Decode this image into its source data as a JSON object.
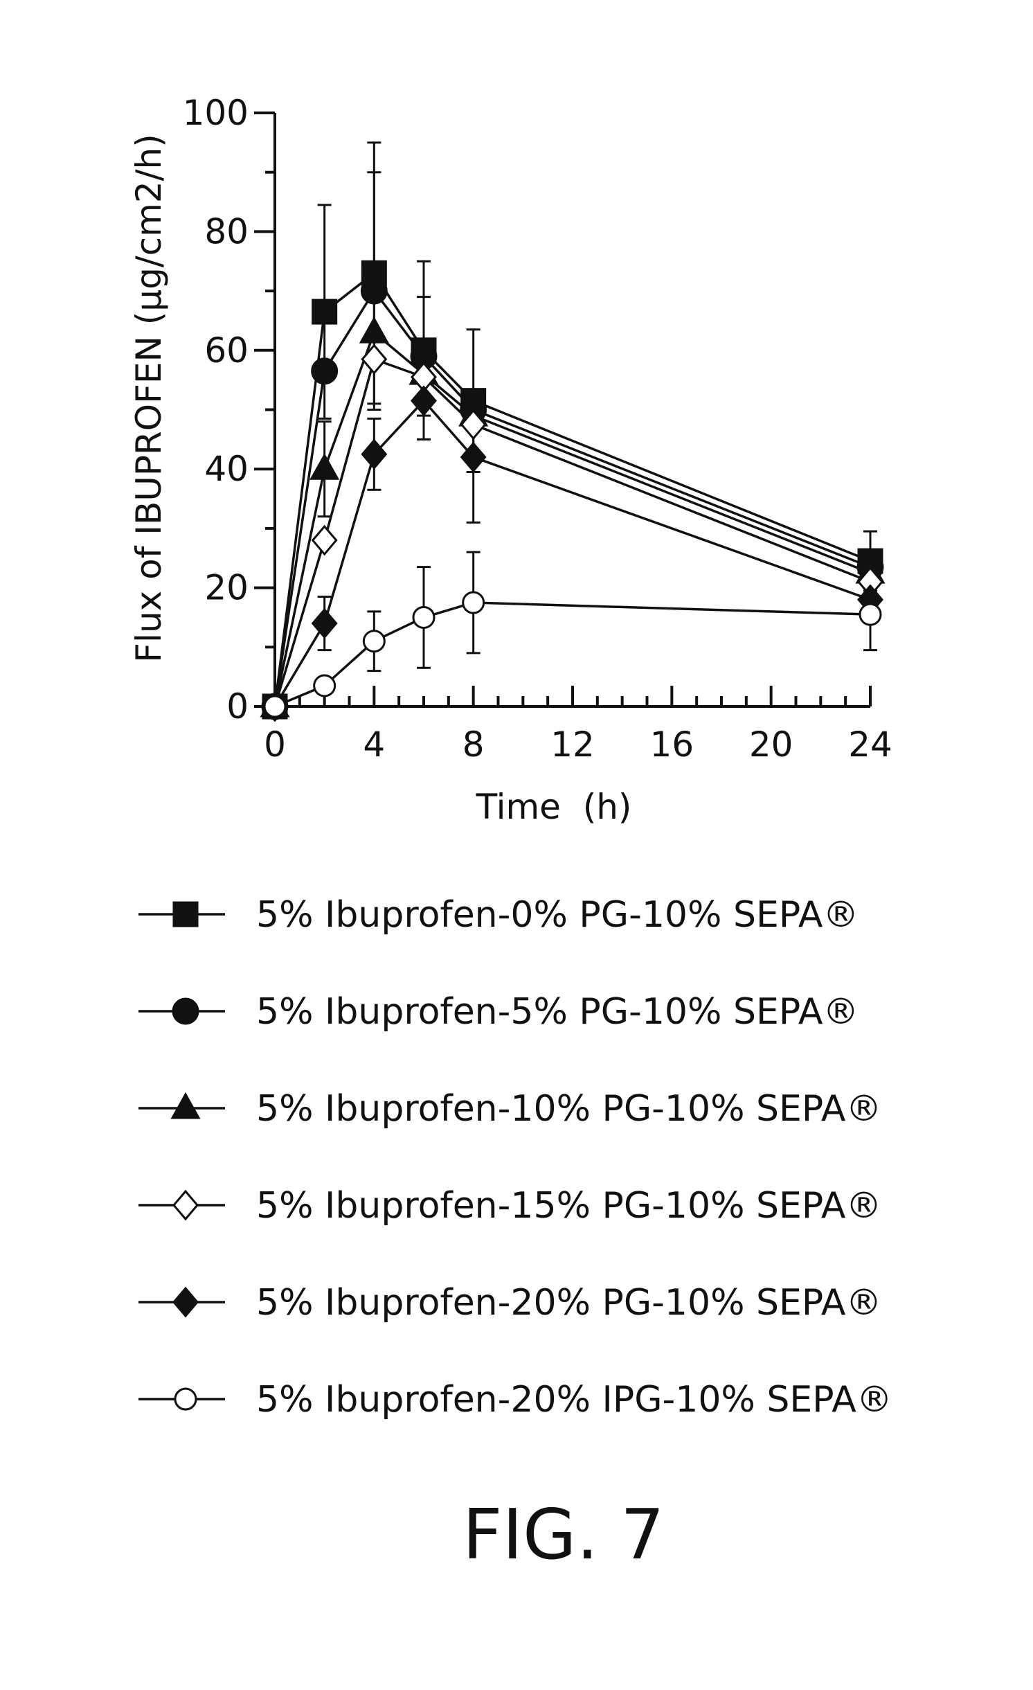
{
  "chart_data": {
    "type": "line",
    "title": "",
    "xlabel": "Time  (h)",
    "ylabel": "Flux of IBUPROFEN (µg/cm2/h)",
    "xlim": [
      0,
      24
    ],
    "ylim": [
      0,
      100
    ],
    "xticks": [
      0,
      4,
      8,
      12,
      16,
      20,
      24
    ],
    "xtick_labels": [
      "0",
      "4",
      "8",
      "12",
      "16",
      "20",
      "24"
    ],
    "yticks": [
      0,
      20,
      40,
      60,
      80,
      100
    ],
    "ytick_labels": [
      "0",
      "20",
      "40",
      "60",
      "80",
      "100"
    ],
    "grid": false,
    "legend_position": "below",
    "x": [
      0,
      2,
      4,
      6,
      8,
      24
    ],
    "series": [
      {
        "name": "5% Ibuprofen-0% PG-10% SEPA®",
        "marker": "square-filled",
        "values": [
          0,
          66.5,
          73,
          60,
          51.5,
          24.5
        ],
        "error": [
          0,
          18,
          22,
          15,
          12,
          5
        ]
      },
      {
        "name": "5% Ibuprofen-5% PG-10% SEPA®",
        "marker": "circle-filled",
        "values": [
          0,
          56.5,
          70,
          59,
          50,
          23.5
        ],
        "error": [
          0,
          0,
          20,
          10,
          0,
          0
        ]
      },
      {
        "name": "5% Ibuprofen-10% PG-10% SEPA®",
        "marker": "triangle-filled",
        "values": [
          0,
          40,
          63,
          56,
          49,
          22.5
        ],
        "error": [
          0,
          8,
          0,
          0,
          0,
          0
        ]
      },
      {
        "name": "5% Ibuprofen-15% PG-10% SEPA®",
        "marker": "diamond-open",
        "values": [
          0,
          28,
          58.5,
          55.5,
          47.5,
          21
        ],
        "error": [
          0,
          0,
          0,
          0,
          0,
          0
        ]
      },
      {
        "name": "5% Ibuprofen-20% PG-10% SEPA®",
        "marker": "diamond-filled",
        "values": [
          0,
          14,
          42.5,
          51.5,
          42,
          18
        ],
        "error": [
          0,
          4.5,
          6,
          6.5,
          11,
          0
        ]
      },
      {
        "name": "5% Ibuprofen-20% IPG-10% SEPA®",
        "marker": "circle-open",
        "values": [
          0,
          3.5,
          11,
          15,
          17.5,
          15.5
        ],
        "error": [
          0,
          0,
          5,
          8.5,
          8.5,
          6
        ]
      }
    ]
  },
  "figure_label": "FIG. 7"
}
